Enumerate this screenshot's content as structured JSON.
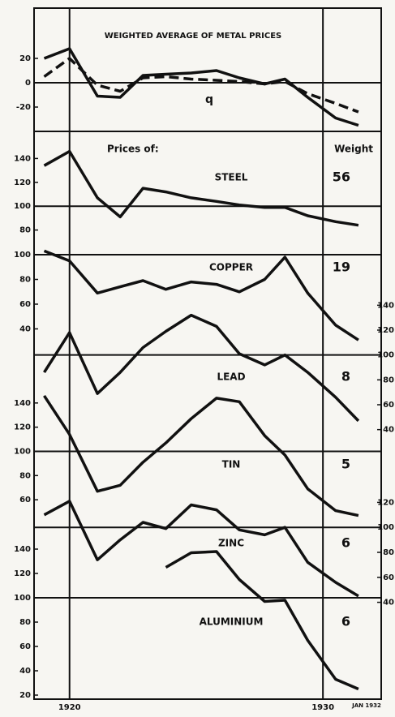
{
  "chart_data": {
    "type": "line",
    "title": "WEIGHTED AVERAGE OF METAL PRICES",
    "header_left": "Prices of:",
    "header_right": "Weight",
    "x": [
      1919.0,
      1920.0,
      1921.1,
      1922.0,
      1922.9,
      1923.8,
      1924.8,
      1925.8,
      1926.7,
      1927.7,
      1928.5,
      1929.4,
      1930.5,
      1931.4
    ],
    "xlim": [
      1918.6,
      1932.3
    ],
    "xticks": [
      1920,
      1930
    ],
    "end_label": "JAN 1932",
    "color": "#111111",
    "panels": [
      {
        "annotation": "q",
        "axis": "left",
        "baseline": 0,
        "ylim": [
          -40,
          60
        ],
        "yticks": [
          -20,
          0,
          20
        ],
        "series": [
          {
            "style": "solid",
            "values": [
              20,
              28,
              -11,
              -12,
              6,
              7,
              8,
              10,
              4,
              -1,
              3,
              -12,
              -29,
              -35
            ]
          },
          {
            "style": "dashed",
            "values": [
              5,
              20,
              -2,
              -7,
              4,
              5,
              3,
              2,
              1,
              -1,
              1,
              -9,
              -17,
              -24
            ]
          }
        ]
      },
      {
        "name": "STEEL",
        "weight": 56,
        "axis": "left",
        "baseline": 100,
        "ylim": [
          60,
          160
        ],
        "yticks": [
          80,
          100,
          120,
          140
        ],
        "series": [
          {
            "style": "solid",
            "values": [
              134,
              146,
              107,
              91,
              115,
              112,
              107,
              104,
              101,
              99,
              99,
              92,
              87,
              84
            ]
          }
        ]
      },
      {
        "name": "COPPER",
        "weight": 19,
        "axis": "left",
        "baseline": 100,
        "ylim": [
          20,
          100
        ],
        "yticks": [
          40,
          60,
          80,
          100
        ],
        "series": [
          {
            "style": "solid",
            "values": [
              103,
              95,
              69,
              74,
              79,
              72,
              78,
              76,
              70,
              80,
              98,
              69,
              43,
              31
            ]
          }
        ]
      },
      {
        "name": "LEAD",
        "weight": 8,
        "axis": "right",
        "baseline": 100,
        "ylim": [
          30,
          150
        ],
        "yticks": [
          40,
          60,
          80,
          100,
          120,
          140
        ],
        "series": [
          {
            "style": "solid",
            "values": [
              86,
              118,
              69,
              86,
              106,
              119,
              132,
              123,
              101,
              92,
              100,
              86,
              66,
              47
            ]
          }
        ]
      },
      {
        "name": "TIN",
        "weight": 5,
        "axis": "left",
        "baseline": 100,
        "ylim": [
          40,
          160
        ],
        "yticks": [
          60,
          80,
          100,
          120,
          140
        ],
        "series": [
          {
            "style": "solid",
            "values": [
              146,
              114,
              67,
              72,
              91,
              107,
              127,
              144,
              141,
              113,
              97,
              69,
              51,
              47
            ]
          }
        ]
      },
      {
        "name": "ZINC",
        "weight": 6,
        "axis": "right",
        "baseline": 100,
        "ylim": [
          30,
          130
        ],
        "yticks": [
          40,
          60,
          80,
          100,
          120
        ],
        "series": [
          {
            "style": "solid",
            "values": [
              110,
              121,
              74,
              90,
              104,
              99,
              118,
              114,
              98,
              94,
              100,
              72,
              56,
              45
            ]
          }
        ]
      },
      {
        "name": "ALUMINIUM",
        "weight": 6,
        "axis": "left",
        "baseline": 100,
        "ylim": [
          20,
          160
        ],
        "yticks": [
          20,
          40,
          60,
          80,
          100,
          120,
          140
        ],
        "series": [
          {
            "style": "solid",
            "values": [
              null,
              null,
              null,
              null,
              null,
              125,
              137,
              138,
              115,
              97,
              98,
              65,
              33,
              25
            ]
          }
        ]
      }
    ]
  }
}
